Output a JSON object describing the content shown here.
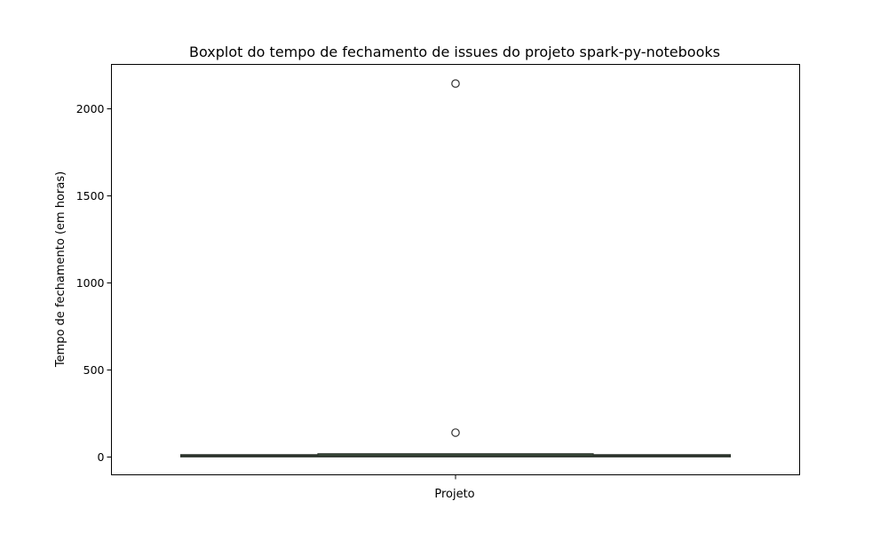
{
  "chart_data": {
    "type": "box",
    "title": "Boxplot do tempo de fechamento de issues do projeto spark-py-notebooks",
    "xlabel": "Projeto",
    "ylabel": "Tempo de fechamento (em horas)",
    "categories": [
      ""
    ],
    "ylim": [
      -105,
      2250
    ],
    "yticks": [
      0,
      500,
      1000,
      1500,
      2000
    ],
    "grid": false,
    "box": {
      "whisker_low": 0,
      "q1": 0.5,
      "median": 2,
      "q3": 8,
      "whisker_high": 10,
      "outliers": [
        137,
        2140
      ]
    },
    "colors": {
      "box_fill": "#3a4d3a",
      "box_line": "#2b332b",
      "outlier_edge": "#333333"
    }
  }
}
